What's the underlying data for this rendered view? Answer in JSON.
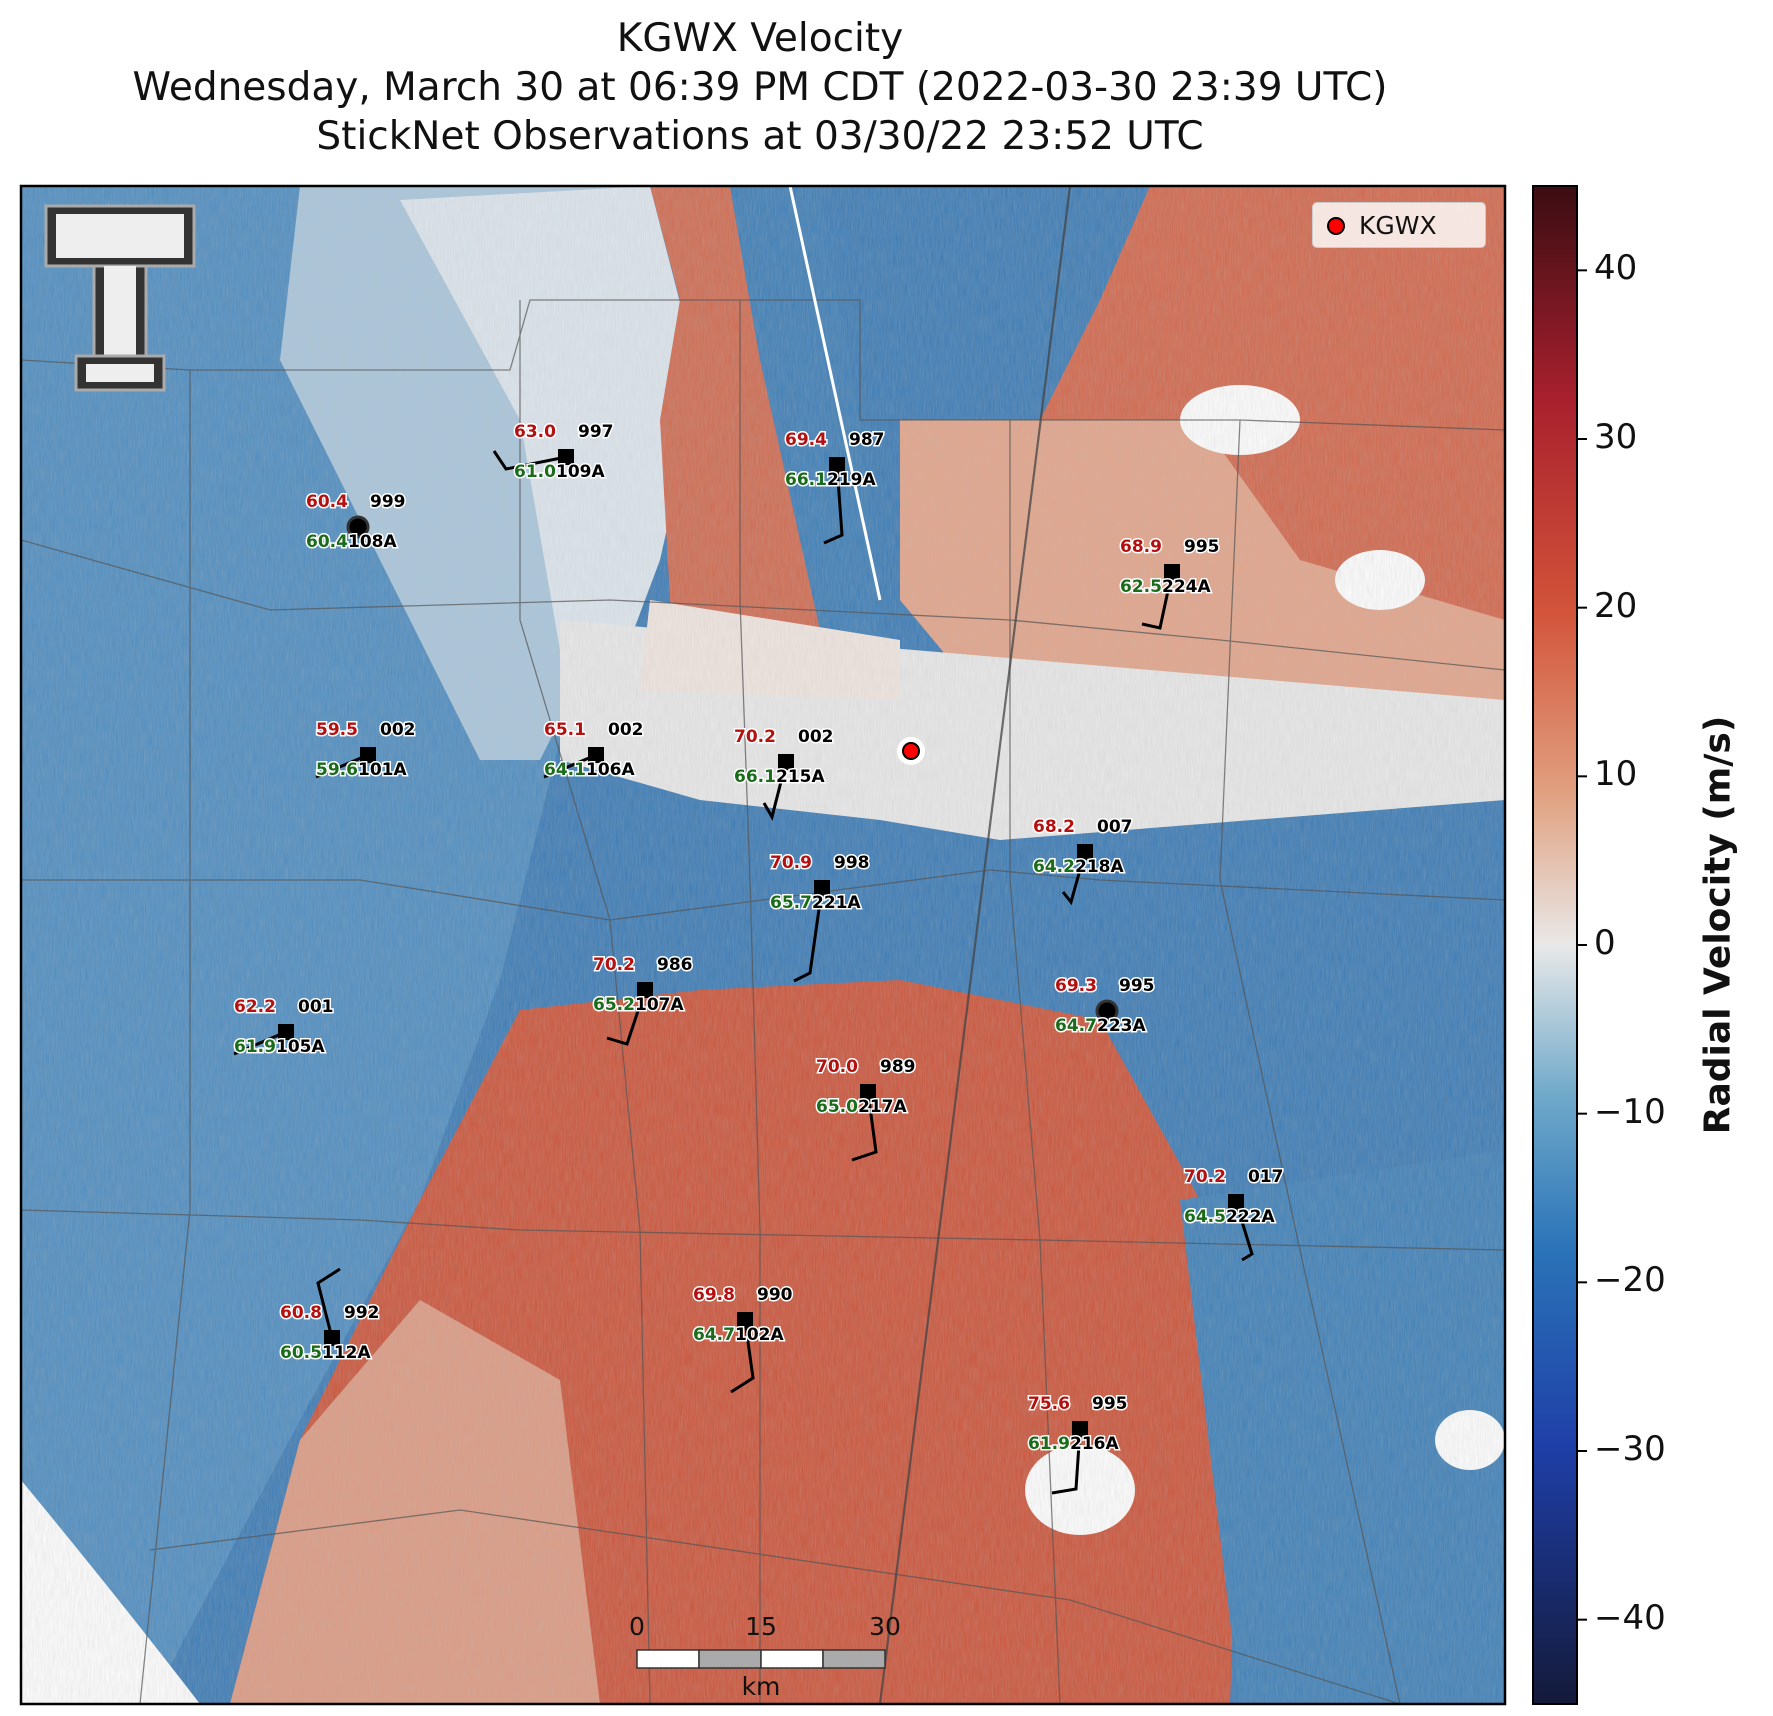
{
  "title": {
    "line1": "KGWX Velocity",
    "line2": "Wednesday, March 30 at 06:39 PM CDT (2022-03-30 23:39 UTC)",
    "line3": "StickNet Observations at 03/30/22 23:52 UTC"
  },
  "legend": {
    "label": "KGWX",
    "marker_color": "#ff0000"
  },
  "colorbar": {
    "title": "Radial Velocity (m/s)",
    "ticks": [
      "40",
      "30",
      "20",
      "10",
      "0",
      "−10",
      "−20",
      "−30",
      "−40"
    ],
    "range": [
      -45,
      45
    ],
    "colors": [
      "#141a3a",
      "#1f3fa8",
      "#2b74b8",
      "#6fa8c9",
      "#e8e8e8",
      "#e0a080",
      "#d2543a",
      "#a8202e",
      "#3a0d12"
    ]
  },
  "scale_bar": {
    "labels": [
      "0",
      "15",
      "30"
    ],
    "unit": "km"
  },
  "map_colors": {
    "inbound": "#3777b4",
    "outbound": "#cf5a3e",
    "neutral": "#eeeeee"
  },
  "stations": [
    {
      "id": "108A",
      "temp": "60.4",
      "dew": "60.4",
      "pres": "999",
      "calm": true
    },
    {
      "id": "109A",
      "temp": "63.0",
      "dew": "61.0",
      "pres": "997"
    },
    {
      "id": "219A",
      "temp": "69.4",
      "dew": "66.1",
      "pres": "987"
    },
    {
      "id": "224A",
      "temp": "68.9",
      "dew": "62.5",
      "pres": "995"
    },
    {
      "id": "101A",
      "temp": "59.5",
      "dew": "59.6",
      "pres": "002"
    },
    {
      "id": "106A",
      "temp": "65.1",
      "dew": "64.1",
      "pres": "002"
    },
    {
      "id": "215A",
      "temp": "70.2",
      "dew": "66.1",
      "pres": "002"
    },
    {
      "id": "218A",
      "temp": "68.2",
      "dew": "64.2",
      "pres": "007"
    },
    {
      "id": "221A",
      "temp": "70.9",
      "dew": "65.7",
      "pres": "998"
    },
    {
      "id": "105A",
      "temp": "62.2",
      "dew": "61.9",
      "pres": "001"
    },
    {
      "id": "107A",
      "temp": "70.2",
      "dew": "65.2",
      "pres": "986"
    },
    {
      "id": "223A",
      "temp": "69.3",
      "dew": "64.7",
      "pres": "995",
      "calm": true
    },
    {
      "id": "217A",
      "temp": "70.0",
      "dew": "65.0",
      "pres": "989"
    },
    {
      "id": "222A",
      "temp": "70.2",
      "dew": "64.5",
      "pres": "017"
    },
    {
      "id": "102A",
      "temp": "69.8",
      "dew": "64.7",
      "pres": "990"
    },
    {
      "id": "112A",
      "temp": "60.8",
      "dew": "60.5",
      "pres": "992"
    },
    {
      "id": "216A",
      "temp": "75.6",
      "dew": "61.9",
      "pres": "995"
    }
  ]
}
